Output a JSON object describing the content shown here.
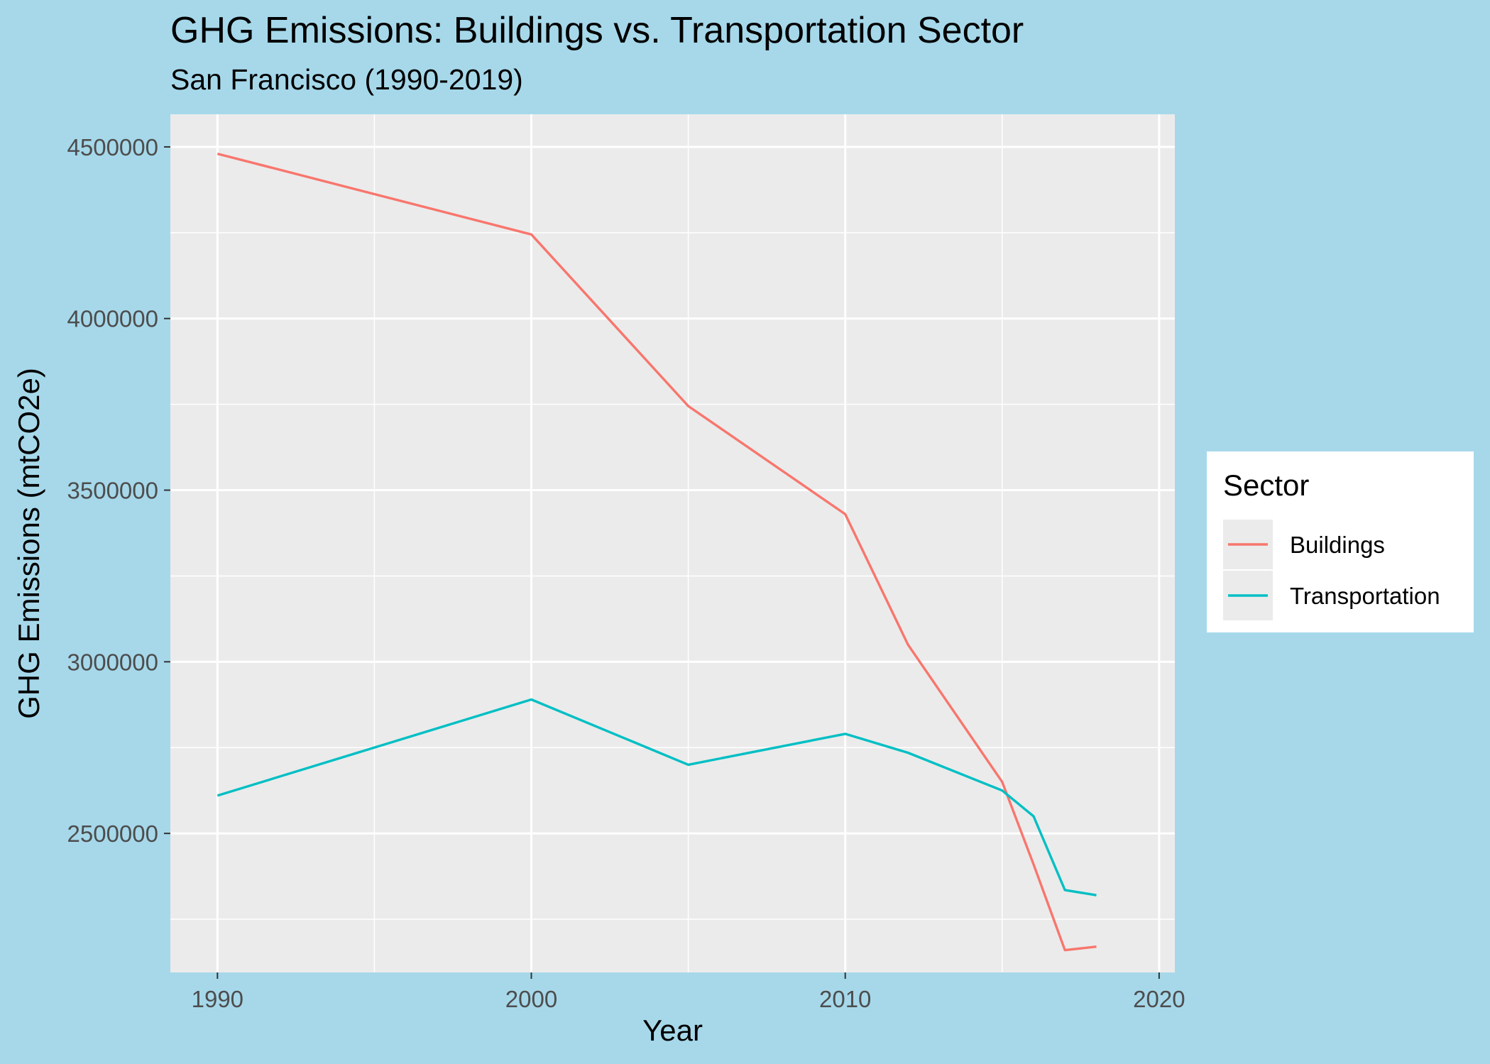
{
  "chart_data": {
    "type": "line",
    "title": "GHG Emissions: Buildings vs. Transportation Sector",
    "subtitle": "San Francisco (1990-2019)",
    "xlabel": "Year",
    "ylabel": "GHG Emissions (mtCO2e)",
    "xlim": [
      1988.5,
      2020.5
    ],
    "ylim": [
      2095000,
      4595000
    ],
    "x_ticks": [
      1990,
      2000,
      2010,
      2020
    ],
    "x_tick_labels": [
      "1990",
      "2000",
      "2010",
      "2020"
    ],
    "y_ticks": [
      2500000,
      3000000,
      3500000,
      4000000,
      4500000
    ],
    "y_tick_labels": [
      "2500000",
      "3000000",
      "3500000",
      "4000000",
      "4500000"
    ],
    "grid": true,
    "legend": {
      "title": "Sector",
      "position": "right"
    },
    "series": [
      {
        "name": "Buildings",
        "color": "#f8766d",
        "x": [
          1990,
          2000,
          2005,
          2010,
          2012,
          2015,
          2016,
          2017,
          2018
        ],
        "y": [
          4480000,
          4245000,
          3745000,
          3430000,
          3050000,
          2650000,
          2410000,
          2160000,
          2170000
        ]
      },
      {
        "name": "Transportation",
        "color": "#00bfc4",
        "x": [
          1990,
          2000,
          2005,
          2010,
          2012,
          2015,
          2016,
          2017,
          2018
        ],
        "y": [
          2610000,
          2890000,
          2700000,
          2790000,
          2735000,
          2625000,
          2550000,
          2335000,
          2320000
        ]
      }
    ]
  }
}
